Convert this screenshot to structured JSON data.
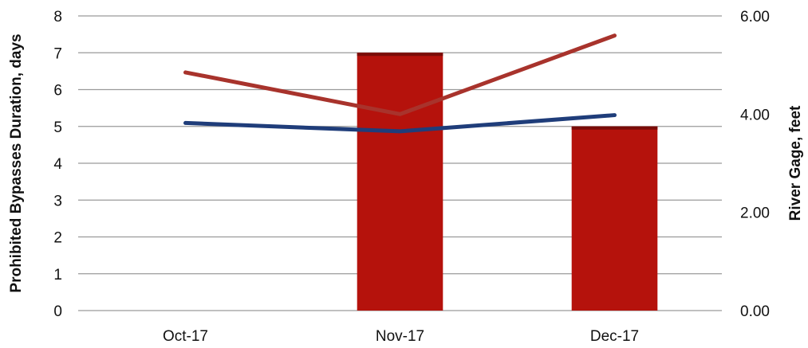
{
  "chart_data": {
    "type": "bar",
    "title": "",
    "categories": [
      "Oct-17",
      "Nov-17",
      "Dec-17"
    ],
    "ylabel": "Prohibited Bypasses Duration, days",
    "y2label": "River Gage, feet",
    "ylim": [
      0,
      8
    ],
    "y2lim": [
      0,
      6
    ],
    "yticks": [
      "0",
      "1",
      "2",
      "3",
      "4",
      "5",
      "6",
      "7",
      "8"
    ],
    "y2ticks": [
      "0.00",
      "2.00",
      "4.00",
      "6.00"
    ],
    "grid": true,
    "series": [
      {
        "kind": "bar",
        "axis": "left",
        "values": [
          0,
          7,
          5
        ],
        "color": "#b5120c"
      },
      {
        "kind": "line",
        "axis": "right",
        "values": [
          4.85,
          4.0,
          5.6
        ],
        "color": "#a8332c"
      },
      {
        "kind": "line",
        "axis": "right",
        "values": [
          3.82,
          3.65,
          3.98
        ],
        "color": "#1f3d7a"
      }
    ]
  }
}
